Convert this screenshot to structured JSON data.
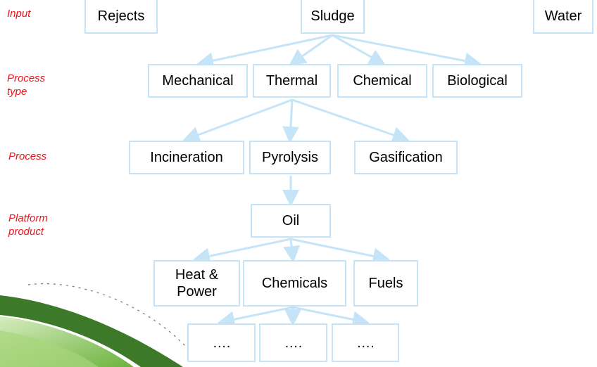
{
  "stages": [
    {
      "label": "Input",
      "nodes": [
        "Rejects",
        "Sludge",
        "Water"
      ]
    },
    {
      "label": "Process type",
      "nodes": [
        "Mechanical",
        "Thermal",
        "Chemical",
        "Biological"
      ]
    },
    {
      "label": "Process",
      "nodes": [
        "Incineration",
        "Pyrolysis",
        "Gasification"
      ]
    },
    {
      "label": "Platform product",
      "nodes": [
        "Oil"
      ]
    }
  ],
  "products": [
    "Heat & Power",
    "Chemicals",
    "Fuels"
  ],
  "outputs": [
    "….",
    "….",
    "…."
  ]
}
